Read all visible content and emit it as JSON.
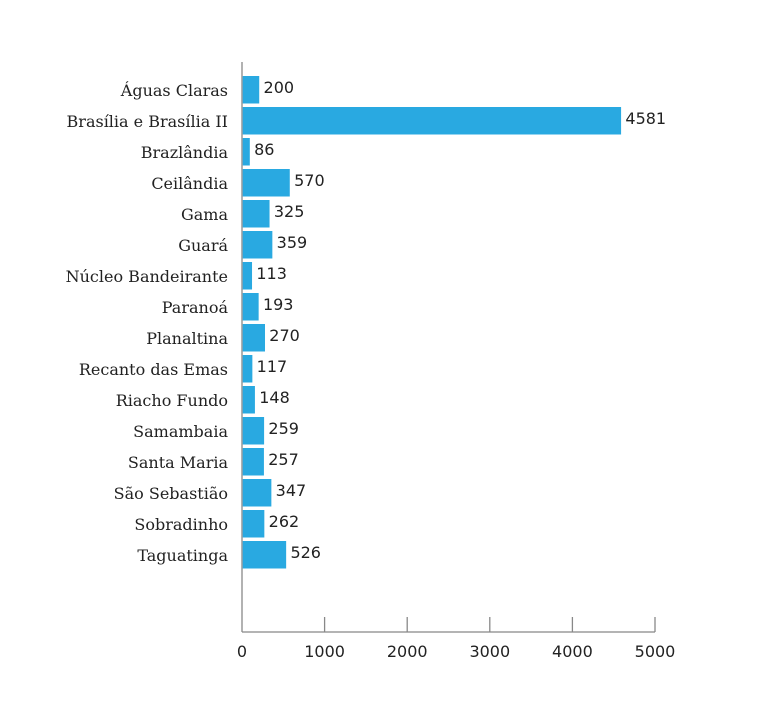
{
  "chart_data": {
    "type": "bar",
    "orientation": "horizontal",
    "categories": [
      "Águas Claras",
      "Brasília e Brasília II",
      "Brazlândia",
      "Ceilândia",
      "Gama",
      "Guará",
      "Núcleo Bandeirante",
      "Paranoá",
      "Planaltina",
      "Recanto das Emas",
      "Riacho Fundo",
      "Samambaia",
      "Santa Maria",
      "São Sebastião",
      "Sobradinho",
      "Taguatinga"
    ],
    "values": [
      200,
      4581,
      86,
      570,
      325,
      359,
      113,
      193,
      270,
      117,
      148,
      259,
      257,
      347,
      262,
      526
    ],
    "data_labels": [
      "200",
      "4581",
      "86",
      "570",
      "325",
      "359",
      "113",
      "193",
      "270",
      "117",
      "148",
      "259",
      "257",
      "347",
      "262",
      "526"
    ],
    "xlim": [
      0,
      5000
    ],
    "xticks": [
      "0",
      "1000",
      "2000",
      "3000",
      "4000",
      "5000"
    ],
    "grid": false,
    "bar_color": "#29a9e1"
  }
}
